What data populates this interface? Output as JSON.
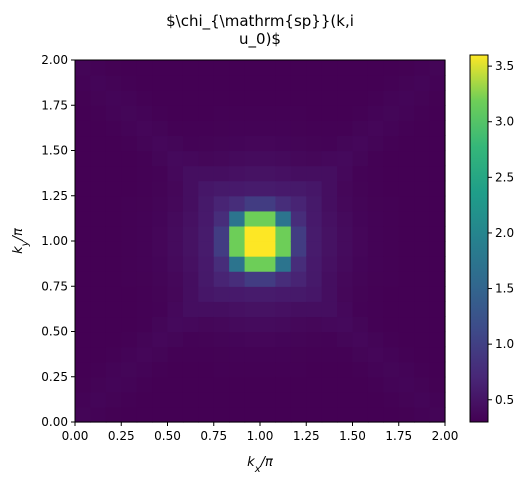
{
  "chart_data": {
    "type": "heatmap",
    "title_lines": [
      "$\\chi_{\\mathrm{sp}}(k,i",
      "u_0)$"
    ],
    "xlabel": "k_x/π",
    "ylabel": "k_y/π",
    "xlim": [
      0,
      2
    ],
    "ylim": [
      0,
      2
    ],
    "x_ticks": [
      "0.00",
      "0.25",
      "0.50",
      "0.75",
      "1.00",
      "1.25",
      "1.50",
      "1.75",
      "2.00"
    ],
    "y_ticks": [
      "0.00",
      "0.25",
      "0.50",
      "0.75",
      "1.00",
      "1.25",
      "1.50",
      "1.75",
      "2.00"
    ],
    "grid_size": 24,
    "colormap": "viridis",
    "colorbar": {
      "min": 0.3,
      "max": 3.6,
      "ticks": [
        "0.5",
        "1.0",
        "1.5",
        "2.0",
        "2.5",
        "3.0",
        "3.5"
      ]
    },
    "peak_value": 3.6,
    "center": [
      1.0,
      1.0
    ],
    "grid": false
  }
}
